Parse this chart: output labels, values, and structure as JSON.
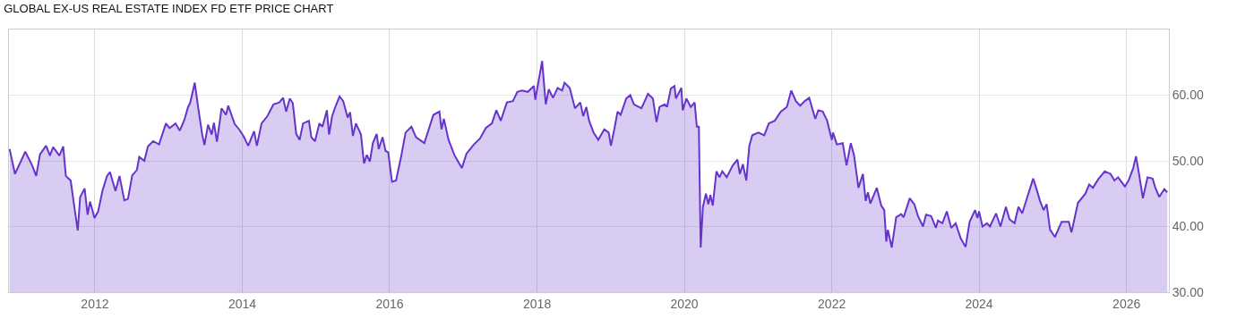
{
  "chart_data": {
    "type": "area",
    "title": "GLOBAL EX-US REAL ESTATE INDEX FD ETF PRICE CHART",
    "x": [
      "2010-11-04",
      "2010-12-01",
      "2011-01-21",
      "2011-02-24",
      "2011-03-16",
      "2011-04-04",
      "2011-05-04",
      "2011-05-23",
      "2011-06-08",
      "2011-07-09",
      "2011-07-28",
      "2011-08-10",
      "2011-09-03",
      "2011-09-21",
      "2011-10-08",
      "2011-10-20",
      "2011-11-11",
      "2011-11-26",
      "2011-12-08",
      "2011-12-30",
      "2012-01-17",
      "2012-02-08",
      "2012-03-01",
      "2012-03-16",
      "2012-04-12",
      "2012-05-02",
      "2012-05-26",
      "2012-06-13",
      "2012-07-04",
      "2012-07-27",
      "2012-08-08",
      "2012-09-02",
      "2012-09-20",
      "2012-10-16",
      "2012-11-14",
      "2012-12-18",
      "2013-01-05",
      "2013-02-04",
      "2013-02-25",
      "2013-03-19",
      "2013-04-07",
      "2013-04-17",
      "2013-05-10",
      "2013-05-29",
      "2013-06-16",
      "2013-06-27",
      "2013-07-15",
      "2013-08-02",
      "2013-08-13",
      "2013-08-28",
      "2013-09-20",
      "2013-10-12",
      "2013-10-23",
      "2013-11-24",
      "2013-12-16",
      "2014-01-08",
      "2014-01-30",
      "2014-02-28",
      "2014-03-14",
      "2014-04-06",
      "2014-05-05",
      "2014-06-04",
      "2014-07-03",
      "2014-07-22",
      "2014-08-06",
      "2014-08-24",
      "2014-09-08",
      "2014-09-25",
      "2014-10-12",
      "2014-10-29",
      "2014-11-27",
      "2014-12-09",
      "2014-12-27",
      "2015-01-18",
      "2015-02-02",
      "2015-02-24",
      "2015-03-07",
      "2015-03-22",
      "2015-04-09",
      "2015-04-28",
      "2015-05-16",
      "2015-06-07",
      "2015-06-19",
      "2015-07-03",
      "2015-07-18",
      "2015-08-12",
      "2015-08-27",
      "2015-09-10",
      "2015-09-25",
      "2015-10-10",
      "2015-10-29",
      "2015-11-08",
      "2015-11-27",
      "2015-12-12",
      "2015-12-25",
      "2016-01-13",
      "2016-02-02",
      "2016-02-26",
      "2016-03-20",
      "2016-04-18",
      "2016-05-11",
      "2016-06-21",
      "2016-08-05",
      "2016-09-04",
      "2016-09-14",
      "2016-09-26",
      "2016-10-19",
      "2016-11-17",
      "2016-12-24",
      "2017-01-16",
      "2017-02-22",
      "2017-03-24",
      "2017-04-22",
      "2017-05-22",
      "2017-06-13",
      "2017-07-05",
      "2017-08-04",
      "2017-09-03",
      "2017-09-25",
      "2017-10-17",
      "2017-11-16",
      "2017-12-16",
      "2017-12-23",
      "2018-01-26",
      "2018-02-13",
      "2018-02-28",
      "2018-03-21",
      "2018-04-13",
      "2018-05-05",
      "2018-05-17",
      "2018-06-12",
      "2018-07-08",
      "2018-08-03",
      "2018-08-18",
      "2018-09-02",
      "2018-09-16",
      "2018-10-08",
      "2018-10-31",
      "2018-11-30",
      "2018-12-22",
      "2019-01-02",
      "2019-01-20",
      "2019-02-04",
      "2019-02-19",
      "2019-03-19",
      "2019-04-08",
      "2019-04-26",
      "2019-06-02",
      "2019-07-05",
      "2019-07-29",
      "2019-08-16",
      "2019-08-31",
      "2019-09-26",
      "2019-10-07",
      "2019-10-26",
      "2019-11-13",
      "2019-11-20",
      "2019-12-17",
      "2019-12-24",
      "2020-01-11",
      "2020-02-02",
      "2020-02-21",
      "2020-03-03",
      "2020-03-13",
      "2020-03-22",
      "2020-04-02",
      "2020-04-17",
      "2020-04-29",
      "2020-05-09",
      "2020-05-21",
      "2020-06-08",
      "2020-06-23",
      "2020-07-07",
      "2020-07-29",
      "2020-08-28",
      "2020-09-20",
      "2020-10-02",
      "2020-10-17",
      "2020-11-03",
      "2020-11-18",
      "2020-12-03",
      "2021-01-02",
      "2021-01-31",
      "2021-02-23",
      "2021-03-24",
      "2021-04-23",
      "2021-05-23",
      "2021-06-14",
      "2021-07-07",
      "2021-07-28",
      "2021-08-20",
      "2021-09-11",
      "2021-10-11",
      "2021-10-26",
      "2021-11-17",
      "2021-12-09",
      "2022-01-01",
      "2022-01-07",
      "2022-01-26",
      "2022-02-24",
      "2022-03-15",
      "2022-04-05",
      "2022-04-21",
      "2022-05-13",
      "2022-06-04",
      "2022-06-18",
      "2022-06-29",
      "2022-07-11",
      "2022-08-12",
      "2022-09-03",
      "2022-09-18",
      "2022-09-28",
      "2022-10-06",
      "2022-10-25",
      "2022-11-16",
      "2022-12-11",
      "2022-12-23",
      "2023-01-22",
      "2023-02-14",
      "2023-03-04",
      "2023-03-29",
      "2023-04-13",
      "2023-05-08",
      "2023-06-01",
      "2023-06-11",
      "2023-07-03",
      "2023-07-25",
      "2023-08-16",
      "2023-09-07",
      "2023-10-02",
      "2023-10-26",
      "2023-11-15",
      "2023-12-12",
      "2023-12-24",
      "2024-01-01",
      "2024-01-18",
      "2024-02-09",
      "2024-02-24",
      "2024-03-25",
      "2024-04-16",
      "2024-05-13",
      "2024-05-31",
      "2024-06-25",
      "2024-07-14",
      "2024-08-02",
      "2024-08-27",
      "2024-09-25",
      "2024-10-10",
      "2024-10-29",
      "2024-11-16",
      "2024-12-01",
      "2024-12-18",
      "2025-01-11",
      "2025-02-13",
      "2025-03-07",
      "2025-03-21",
      "2025-04-03",
      "2025-05-05",
      "2025-06-11",
      "2025-06-30",
      "2025-07-18",
      "2025-08-16",
      "2025-09-15",
      "2025-10-14",
      "2025-11-02",
      "2025-11-20",
      "2025-12-24",
      "2026-01-11",
      "2026-02-03",
      "2026-02-17",
      "2026-03-04",
      "2026-03-23",
      "2026-04-15",
      "2026-05-10",
      "2026-05-24",
      "2026-06-12",
      "2026-07-07",
      "2026-07-22"
    ],
    "series": [
      {
        "color": "#6633cc",
        "values": [
          51.8,
          48.0,
          51.4,
          49.3,
          47.7,
          51.0,
          52.3,
          50.8,
          52.1,
          50.8,
          52.2,
          47.7,
          47.0,
          43.0,
          39.4,
          44.5,
          45.8,
          41.8,
          43.8,
          41.3,
          42.3,
          45.5,
          47.7,
          48.3,
          45.4,
          47.7,
          44.0,
          44.2,
          47.8,
          48.6,
          50.6,
          50.0,
          52.2,
          53.0,
          52.5,
          55.7,
          55.0,
          55.7,
          54.6,
          56.2,
          58.2,
          58.8,
          61.9,
          57.7,
          54.0,
          52.4,
          55.5,
          54.0,
          55.8,
          52.9,
          58.0,
          57.0,
          58.4,
          55.6,
          54.8,
          53.7,
          52.3,
          54.5,
          52.3,
          55.7,
          56.8,
          58.6,
          58.9,
          59.6,
          57.5,
          59.5,
          58.8,
          54.1,
          53.2,
          55.7,
          56.1,
          53.6,
          53.0,
          55.7,
          55.2,
          57.7,
          54.0,
          56.8,
          58.4,
          59.8,
          59.1,
          56.6,
          57.4,
          53.8,
          55.7,
          54.0,
          49.6,
          50.9,
          49.9,
          52.7,
          54.1,
          51.8,
          53.6,
          51.5,
          51.3,
          46.8,
          47.0,
          50.5,
          54.3,
          55.2,
          53.6,
          52.7,
          57.0,
          57.5,
          54.8,
          56.4,
          53.2,
          50.9,
          48.9,
          51.1,
          52.5,
          53.4,
          55.0,
          55.7,
          57.7,
          56.1,
          58.9,
          59.1,
          60.5,
          60.7,
          60.5,
          61.4,
          59.3,
          65.2,
          58.6,
          60.9,
          59.6,
          61.1,
          60.7,
          61.9,
          61.1,
          58.0,
          58.9,
          56.8,
          58.2,
          56.1,
          54.3,
          53.2,
          54.8,
          54.3,
          52.3,
          55.0,
          57.5,
          57.0,
          59.5,
          60.0,
          58.6,
          58.0,
          60.2,
          59.5,
          55.9,
          58.2,
          58.6,
          58.2,
          61.0,
          61.4,
          59.5,
          61.1,
          57.7,
          59.5,
          58.2,
          58.9,
          55.2,
          55.2,
          36.8,
          43.0,
          45.0,
          43.4,
          44.8,
          43.2,
          48.4,
          47.5,
          48.4,
          47.5,
          49.3,
          50.2,
          48.0,
          49.5,
          47.0,
          52.3,
          53.9,
          54.3,
          53.9,
          55.7,
          56.1,
          57.5,
          58.2,
          60.7,
          59.1,
          58.4,
          59.1,
          59.6,
          56.4,
          57.7,
          57.5,
          56.1,
          53.2,
          54.3,
          52.5,
          52.7,
          49.3,
          52.7,
          50.9,
          45.9,
          48.0,
          43.9,
          45.2,
          43.5,
          45.9,
          43.2,
          42.5,
          37.7,
          39.5,
          36.8,
          41.4,
          41.9,
          41.4,
          44.3,
          43.4,
          41.6,
          40.0,
          41.8,
          41.6,
          39.8,
          40.9,
          40.5,
          42.3,
          39.8,
          40.5,
          38.2,
          36.9,
          40.7,
          42.5,
          41.3,
          42.3,
          40.0,
          40.5,
          40.0,
          42.0,
          40.0,
          43.0,
          41.1,
          40.5,
          43.0,
          42.0,
          44.5,
          47.3,
          45.9,
          43.9,
          42.5,
          43.4,
          39.5,
          38.4,
          40.7,
          40.7,
          40.7,
          39.1,
          43.6,
          45.0,
          46.4,
          45.9,
          47.3,
          48.4,
          48.0,
          47.0,
          47.5,
          46.1,
          47.0,
          48.9,
          50.7,
          48.0,
          44.3,
          47.5,
          47.3,
          45.9,
          44.5,
          45.7,
          45.2
        ]
      }
    ],
    "xlim": [
      "2010-11-01",
      "2026-07-30"
    ],
    "xticks": [
      {
        "value": "2012-01-01",
        "label": "2012"
      },
      {
        "value": "2014-01-01",
        "label": "2014"
      },
      {
        "value": "2016-01-01",
        "label": "2016"
      },
      {
        "value": "2018-01-01",
        "label": "2018"
      },
      {
        "value": "2020-01-01",
        "label": "2020"
      },
      {
        "value": "2022-01-01",
        "label": "2022"
      },
      {
        "value": "2024-01-01",
        "label": "2024"
      },
      {
        "value": "2026-01-01",
        "label": "2026"
      }
    ],
    "ylim": [
      30,
      70
    ],
    "yticks": [
      {
        "value": 30,
        "label": "30.00"
      },
      {
        "value": 40,
        "label": "40.00"
      },
      {
        "value": 50,
        "label": "50.00"
      },
      {
        "value": 60,
        "label": "60.00"
      }
    ],
    "grid": true,
    "marker": "none",
    "line_style": "solid"
  }
}
